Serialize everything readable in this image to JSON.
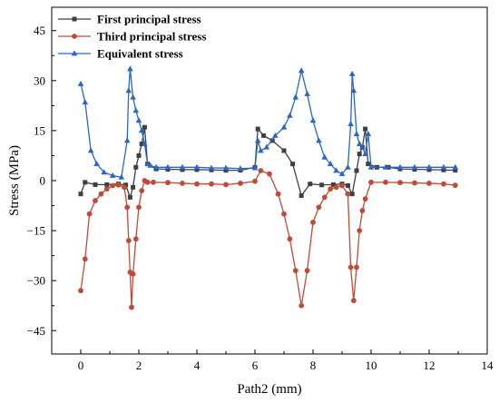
{
  "chart_data": {
    "type": "line",
    "xlabel": "Path2 (mm)",
    "ylabel": "Stress (MPa)",
    "xlim": [
      -1,
      14
    ],
    "ylim": [
      -52,
      52
    ],
    "xticks": [
      0,
      2,
      4,
      6,
      8,
      10,
      12,
      14
    ],
    "yticks": [
      -45,
      -30,
      -15,
      0,
      15,
      30,
      45
    ],
    "grid": false,
    "legend_position": "top-left",
    "series": [
      {
        "name": "First principal stress",
        "color": "#3f3f3f",
        "marker": "square",
        "x": [
          0.0,
          0.15,
          0.5,
          0.9,
          1.3,
          1.55,
          1.7,
          1.8,
          1.9,
          2.0,
          2.1,
          2.2,
          2.3,
          2.6,
          3.0,
          3.5,
          4.0,
          4.5,
          5.0,
          5.5,
          6.0,
          6.1,
          6.3,
          6.6,
          7.0,
          7.3,
          7.6,
          7.9,
          8.3,
          8.7,
          9.0,
          9.2,
          9.35,
          9.5,
          9.6,
          9.7,
          9.8,
          9.9,
          10.2,
          10.6,
          11.0,
          11.5,
          12.0,
          12.5,
          12.9
        ],
        "values": [
          -4,
          -0.5,
          -1.2,
          -1.2,
          -1.0,
          -1.3,
          -5,
          -2,
          4,
          7.5,
          11,
          16,
          5,
          3.5,
          3.4,
          3.3,
          3.3,
          3.2,
          3.1,
          3.1,
          4,
          15.5,
          13.5,
          12,
          9,
          5,
          -4.5,
          -1,
          -1.3,
          -1.2,
          -1.0,
          -1.5,
          -4,
          3,
          8,
          10,
          15.5,
          5,
          4,
          4,
          3.5,
          3.4,
          3.3,
          3.2,
          3.1
        ]
      },
      {
        "name": "Third principal stress",
        "color": "#c04a38",
        "marker": "circle",
        "x": [
          0.0,
          0.15,
          0.3,
          0.5,
          0.7,
          0.9,
          1.1,
          1.3,
          1.5,
          1.6,
          1.65,
          1.7,
          1.75,
          1.8,
          1.9,
          2.0,
          2.1,
          2.2,
          2.3,
          2.5,
          3.0,
          3.5,
          4.0,
          4.5,
          5.0,
          5.5,
          6.0,
          6.2,
          6.5,
          6.8,
          7.0,
          7.2,
          7.4,
          7.6,
          7.8,
          8.0,
          8.2,
          8.4,
          8.6,
          8.8,
          9.0,
          9.2,
          9.3,
          9.4,
          9.5,
          9.6,
          9.7,
          9.8,
          10.0,
          10.5,
          11.0,
          11.5,
          12.0,
          12.5,
          12.9
        ],
        "values": [
          -33,
          -23.5,
          -10,
          -6,
          -4,
          -2.5,
          -1.5,
          -1.3,
          -2,
          -8,
          -18,
          -27.5,
          -38,
          -28,
          -17.5,
          -8,
          -3,
          0,
          -0.5,
          -0.5,
          -0.6,
          -0.8,
          -1.0,
          -1.0,
          -1.2,
          -0.8,
          -0.2,
          3,
          2,
          -4,
          -10,
          -17.5,
          -27,
          -37.5,
          -27,
          -12.5,
          -8,
          -5,
          -2.5,
          -2,
          -1.5,
          -4,
          -26,
          -36,
          -26,
          -15,
          -9,
          -5.5,
          -0.5,
          -0.5,
          -0.6,
          -0.7,
          -0.8,
          -1.0,
          -1.4
        ]
      },
      {
        "name": "Equivalent stress",
        "color": "#2a66c6",
        "marker": "triangle",
        "x": [
          0.0,
          0.15,
          0.35,
          0.55,
          0.8,
          1.1,
          1.4,
          1.6,
          1.65,
          1.7,
          1.8,
          1.9,
          2.0,
          2.1,
          2.2,
          2.3,
          2.4,
          2.6,
          3.0,
          3.5,
          4.0,
          4.5,
          5.0,
          5.5,
          6.0,
          6.1,
          6.2,
          6.4,
          6.7,
          7.0,
          7.2,
          7.4,
          7.6,
          7.8,
          8.0,
          8.2,
          8.4,
          8.6,
          8.8,
          9.0,
          9.2,
          9.3,
          9.35,
          9.4,
          9.5,
          9.6,
          9.7,
          9.8,
          9.9,
          10.0,
          10.5,
          11.0,
          11.5,
          12.0,
          12.5,
          12.9
        ],
        "values": [
          29,
          23.5,
          9,
          5,
          2.5,
          1.5,
          1,
          12,
          27,
          33.5,
          25,
          21,
          18,
          15,
          11,
          5,
          4.5,
          4,
          4,
          4,
          4,
          3.8,
          3.8,
          3.6,
          3.8,
          12,
          9,
          10,
          13.5,
          16,
          19.5,
          25,
          33,
          26,
          18,
          12,
          7,
          5,
          3,
          2,
          4,
          17,
          32,
          27,
          14,
          11,
          10,
          8,
          14,
          4,
          4,
          4,
          4,
          4,
          4,
          4
        ]
      }
    ]
  }
}
